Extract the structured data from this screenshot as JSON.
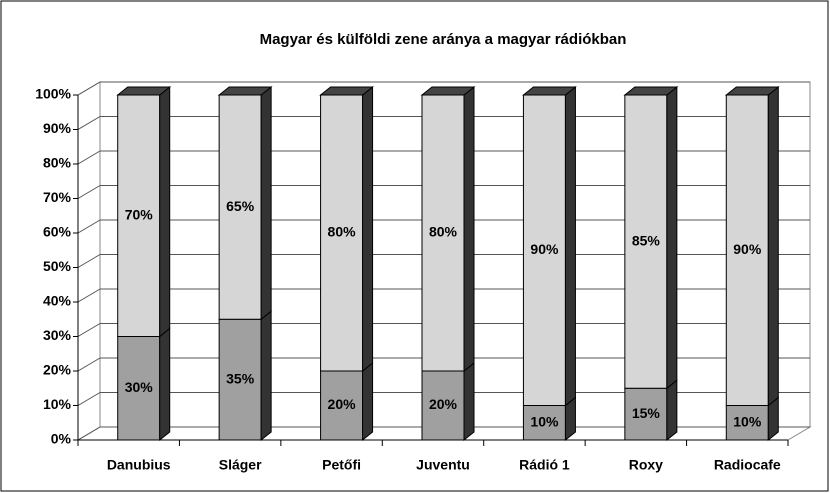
{
  "chart_data": {
    "type": "bar3d_stacked",
    "title": "Magyar és külföldi zene aránya a magyar rádiókban",
    "categories": [
      "Danubius",
      "Sláger",
      "Petőfi",
      "Juventu",
      "Rádió 1",
      "Roxy",
      "Radiocafe"
    ],
    "series": [
      {
        "color": "#a0a0a0",
        "values": [
          30,
          35,
          20,
          20,
          10,
          15,
          10
        ],
        "value_labels": [
          "30%",
          "35%",
          "20%",
          "20%",
          "10%",
          "15%",
          "10%"
        ]
      },
      {
        "color": "#d6d6d6",
        "values": [
          70,
          65,
          80,
          80,
          90,
          85,
          90
        ],
        "value_labels": [
          "70%",
          "65%",
          "80%",
          "80%",
          "90%",
          "85%",
          "90%"
        ]
      }
    ],
    "ylim": [
      0,
      100
    ],
    "yticks": [
      {
        "value": 0,
        "label": "0%"
      },
      {
        "value": 10,
        "label": "10%"
      },
      {
        "value": 20,
        "label": "20%"
      },
      {
        "value": 30,
        "label": "30%"
      },
      {
        "value": 40,
        "label": "40%"
      },
      {
        "value": 50,
        "label": "50%"
      },
      {
        "value": 60,
        "label": "60%"
      },
      {
        "value": 70,
        "label": "70%"
      },
      {
        "value": 80,
        "label": "80%"
      },
      {
        "value": 90,
        "label": "90%"
      },
      {
        "value": 100,
        "label": "100%"
      }
    ],
    "grid": true
  }
}
